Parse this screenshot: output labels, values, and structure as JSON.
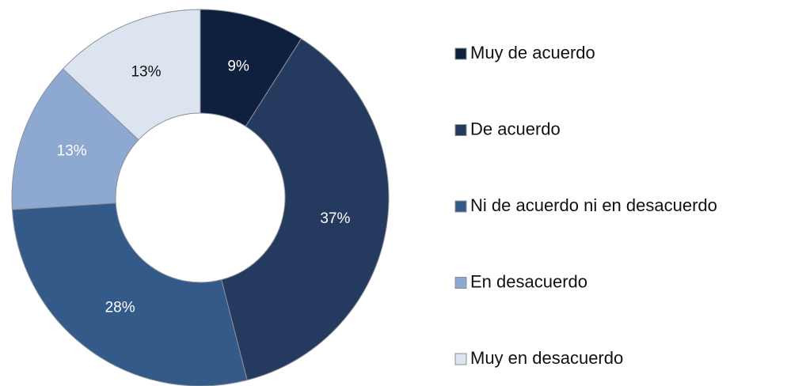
{
  "chart_data": {
    "type": "donut",
    "categories": [
      "Muy de acuerdo",
      "De acuerdo",
      "Ni de acuerdo ni en desacuerdo",
      "En desacuerdo",
      "Muy en desacuerdo"
    ],
    "values": [
      9,
      37,
      28,
      13,
      13
    ],
    "value_labels": [
      "9%",
      "37%",
      "28%",
      "13%",
      "13%"
    ],
    "colors": [
      "#0f203e",
      "#243a5e",
      "#345a8a",
      "#8ea9d1",
      "#dce4f0"
    ],
    "legend": "right"
  }
}
